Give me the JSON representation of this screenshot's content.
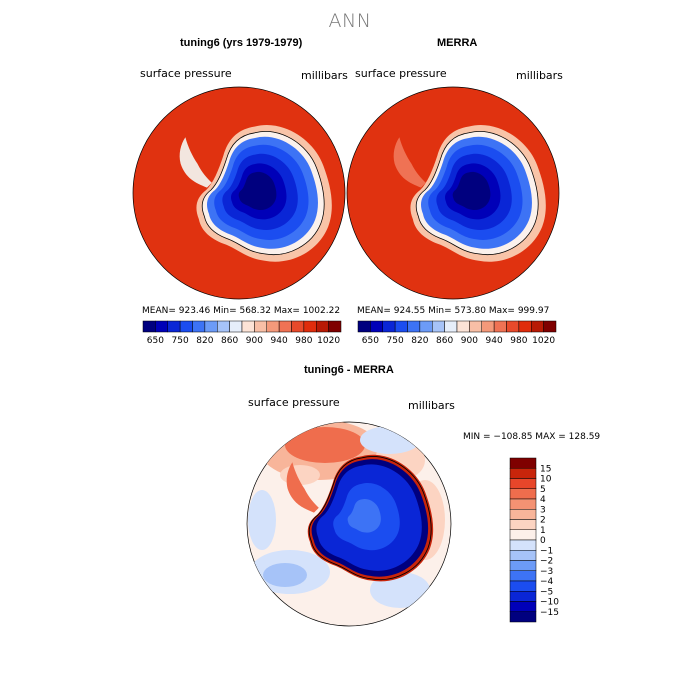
{
  "page_title": "ANN",
  "palette": {
    "panel_colors": [
      "#00007f",
      "#0000b8",
      "#0a26d6",
      "#1b4df0",
      "#3d73f5",
      "#6c9bf7",
      "#a6c3f8",
      "#e6eefa",
      "#fce3d6",
      "#f8bfa6",
      "#f4997a",
      "#ef7254",
      "#e84a2b",
      "#e02d0c",
      "#b81a05",
      "#7f0000"
    ],
    "panel_labels": [
      "650",
      "750",
      "820",
      "860",
      "900",
      "940",
      "980",
      "1020"
    ],
    "diff_colors": [
      "#00007f",
      "#0000b8",
      "#0a26d6",
      "#1b4df0",
      "#3d73f5",
      "#6c9bf7",
      "#a6c3f8",
      "#d4e2fb",
      "#fcf0ea",
      "#fcd4c2",
      "#f8b59a",
      "#f49273",
      "#ef6d4d",
      "#e8462a",
      "#c8250b",
      "#7f0000"
    ],
    "diff_labels": [
      "15",
      "10",
      "5",
      "4",
      "3",
      "2",
      "1",
      "0",
      "−1",
      "−2",
      "−3",
      "−4",
      "−5",
      "−10",
      "−15"
    ]
  },
  "chart_data": [
    {
      "type": "heatmap",
      "title": "tuning6 (yrs 1979-1979)",
      "variable": "surface pressure",
      "units": "millibars",
      "stats": "MEAN= 923.46   Min= 568.32   Max= 1002.22",
      "mean": 923.46,
      "min": 568.32,
      "max": 1002.22,
      "colorbar_labels": [
        "650",
        "750",
        "820",
        "860",
        "900",
        "940",
        "980",
        "1020"
      ]
    },
    {
      "type": "heatmap",
      "title": "MERRA",
      "variable": "surface pressure",
      "units": "millibars",
      "stats": "MEAN= 924.55   Min= 573.80   Max= 999.97",
      "mean": 924.55,
      "min": 573.8,
      "max": 999.97,
      "colorbar_labels": [
        "650",
        "750",
        "820",
        "860",
        "900",
        "940",
        "980",
        "1020"
      ]
    },
    {
      "type": "heatmap",
      "title": "tuning6 - MERRA",
      "variable": "surface pressure",
      "units": "millibars",
      "stats": "MIN = −108.85  MAX = 128.59",
      "min": -108.85,
      "max": 128.59,
      "colorbar_labels": [
        "15",
        "10",
        "5",
        "4",
        "3",
        "2",
        "1",
        "0",
        "−1",
        "−2",
        "−3",
        "−4",
        "−5",
        "−10",
        "−15"
      ]
    }
  ]
}
